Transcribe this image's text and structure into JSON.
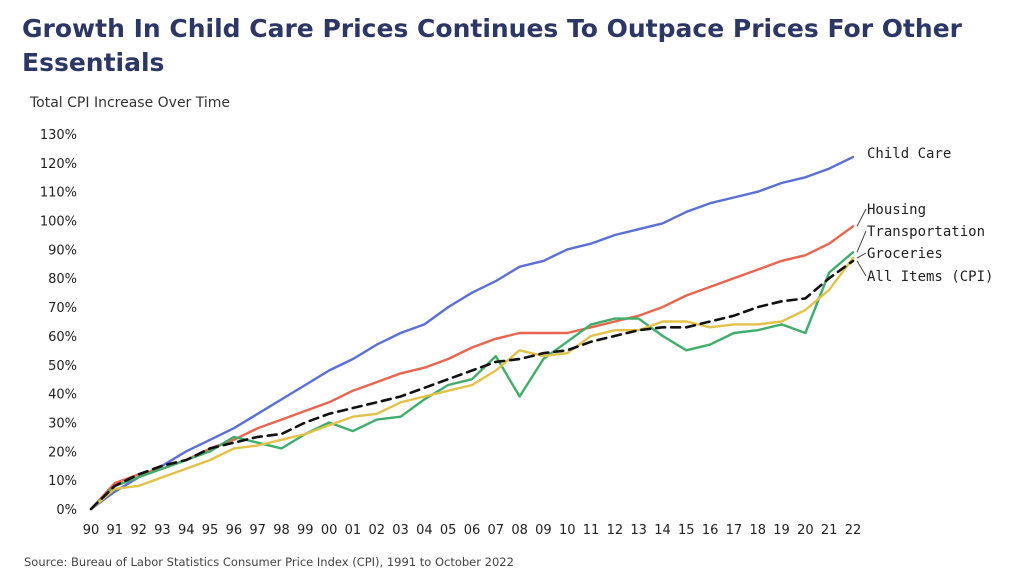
{
  "title": "Growth In Child Care Prices Continues To Outpace Prices For Other Essentials",
  "subtitle": "Total CPI Increase Over Time",
  "source": "Source: Bureau of Labor Statistics Consumer Price Index (CPI), 1991 to October 2022",
  "chart_data": {
    "type": "line",
    "ylabel": "Total CPI Increase Over Time",
    "ylim": [
      0,
      130
    ],
    "ytick_step": 10,
    "yticks": [
      "0%",
      "10%",
      "20%",
      "30%",
      "40%",
      "50%",
      "60%",
      "70%",
      "80%",
      "90%",
      "100%",
      "110%",
      "120%",
      "130%"
    ],
    "grid": false,
    "x": [
      "90",
      "91",
      "92",
      "93",
      "94",
      "95",
      "96",
      "97",
      "98",
      "99",
      "00",
      "01",
      "02",
      "03",
      "04",
      "05",
      "06",
      "07",
      "08",
      "09",
      "10",
      "11",
      "12",
      "13",
      "14",
      "15",
      "16",
      "17",
      "18",
      "19",
      "20",
      "21",
      "22"
    ],
    "series": [
      {
        "name": "Child Care",
        "color": "#5b6fd8",
        "dash": false,
        "values": [
          0,
          6,
          11,
          15,
          20,
          24,
          28,
          33,
          38,
          43,
          48,
          52,
          57,
          61,
          64,
          70,
          75,
          79,
          84,
          86,
          90,
          92,
          95,
          97,
          99,
          103,
          106,
          108,
          110,
          113,
          115,
          118,
          122
        ]
      },
      {
        "name": "Housing",
        "color": "#e8654e",
        "dash": false,
        "values": [
          0,
          9,
          12,
          14,
          17,
          21,
          24,
          28,
          31,
          34,
          37,
          41,
          44,
          47,
          49,
          52,
          56,
          59,
          61,
          61,
          61,
          63,
          65,
          67,
          70,
          74,
          77,
          80,
          83,
          86,
          88,
          92,
          98
        ]
      },
      {
        "name": "Transportation",
        "color": "#3fae6a",
        "dash": false,
        "values": [
          0,
          8,
          11,
          14,
          17,
          20,
          25,
          23,
          21,
          26,
          30,
          27,
          31,
          32,
          38,
          43,
          45,
          53,
          39,
          52,
          58,
          64,
          66,
          66,
          60,
          55,
          57,
          61,
          62,
          64,
          61,
          82,
          89
        ]
      },
      {
        "name": "Groceries",
        "color": "#e3c24a",
        "dash": false,
        "values": [
          0,
          7,
          8,
          11,
          14,
          17,
          21,
          22,
          24,
          26,
          29,
          32,
          33,
          37,
          39,
          41,
          43,
          48,
          55,
          53,
          54,
          60,
          62,
          62,
          65,
          65,
          63,
          64,
          64,
          65,
          69,
          76,
          87
        ]
      },
      {
        "name": "All Items (CPI)",
        "color": "#111111",
        "dash": true,
        "values": [
          0,
          8,
          12,
          15,
          17,
          21,
          23,
          25,
          26,
          30,
          33,
          35,
          37,
          39,
          42,
          45,
          48,
          51,
          52,
          54,
          55,
          58,
          60,
          62,
          63,
          63,
          65,
          67,
          70,
          72,
          73,
          80,
          86
        ]
      }
    ],
    "legend_placement": "right"
  }
}
